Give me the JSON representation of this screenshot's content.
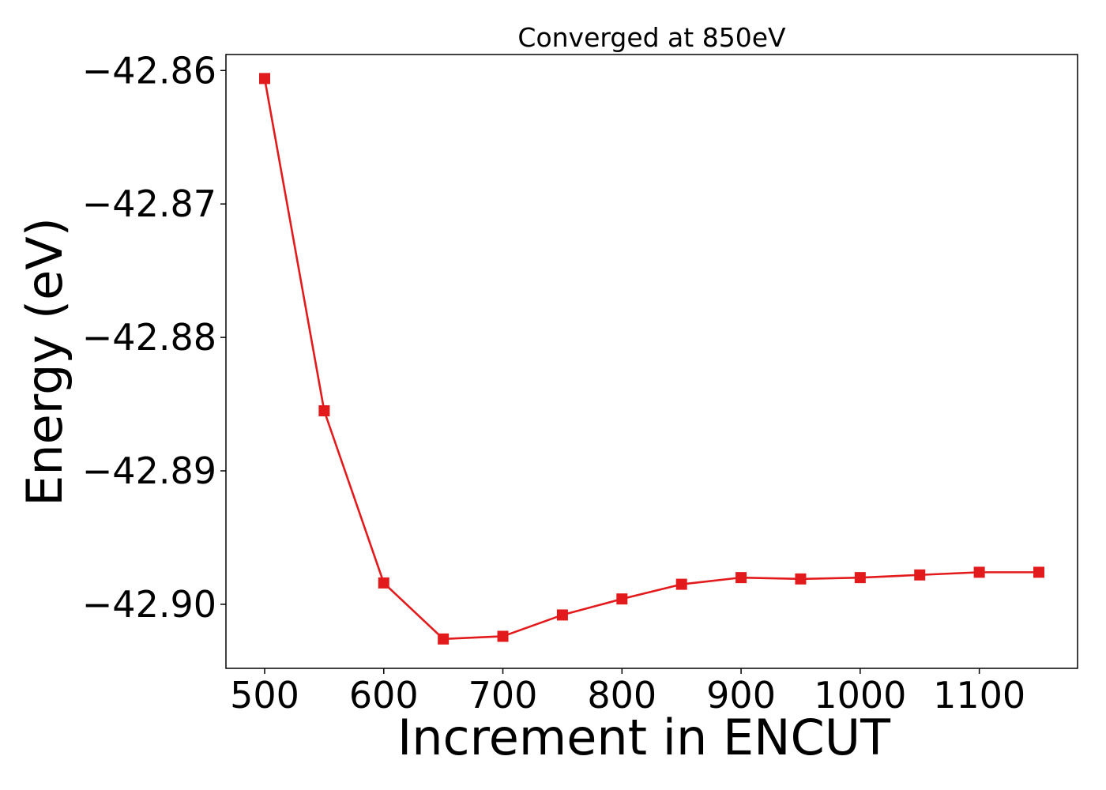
{
  "chart_data": {
    "type": "line",
    "title": "Converged at 850eV",
    "xlabel": "Increment in ENCUT",
    "ylabel": "Energy (eV)",
    "xlim": [
      467.5,
      1182.5
    ],
    "ylim": [
      -42.9048,
      -42.8588
    ],
    "grid": false,
    "x_ticks": [
      500,
      600,
      700,
      800,
      900,
      1000,
      1100
    ],
    "x_tick_labels": [
      "500",
      "600",
      "700",
      "800",
      "900",
      "1000",
      "1100"
    ],
    "y_ticks": [
      -42.86,
      -42.87,
      -42.88,
      -42.89,
      -42.9
    ],
    "y_tick_labels": [
      "−42.86",
      "−42.87",
      "−42.88",
      "−42.89",
      "−42.90"
    ],
    "series": [
      {
        "color": "#e31a1c",
        "marker": "square",
        "x": [
          500,
          550,
          600,
          650,
          700,
          750,
          800,
          850,
          900,
          950,
          1000,
          1050,
          1100,
          1150
        ],
        "y": [
          -42.8606,
          -42.8855,
          -42.8984,
          -42.9026,
          -42.9024,
          -42.9008,
          -42.8996,
          -42.8985,
          -42.898,
          -42.8981,
          -42.898,
          -42.8978,
          -42.8976,
          -42.8976
        ]
      }
    ]
  }
}
